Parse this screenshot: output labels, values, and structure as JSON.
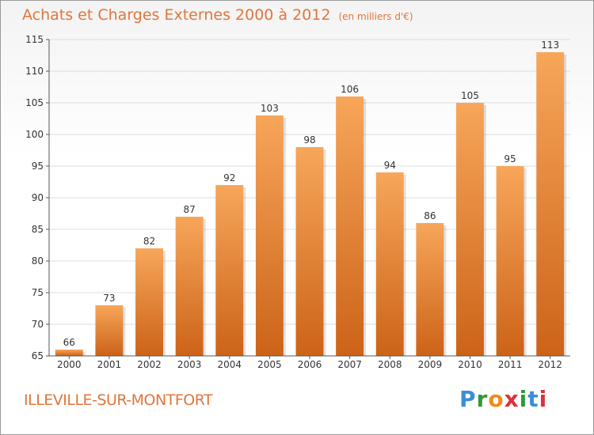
{
  "title": "Achats et Charges Externes 2000 à 2012",
  "subtitle": "(en milliers d'€)",
  "commune": "ILLEVILLE-SUR-MONTFORT",
  "logo": {
    "letters": [
      "P",
      "r",
      "o",
      "x",
      "i",
      "t",
      "i"
    ],
    "colors": [
      "#3a8fd6",
      "#2f9a3a",
      "#f08a1c",
      "#e0303c",
      "#2f9a3a",
      "#3a8fd6",
      "#e0303c"
    ]
  },
  "colors": {
    "bar_top": "#f7a65a",
    "bar_bottom": "#cc6318",
    "axis": "#555555",
    "grid": "#dddddd",
    "text": "#333333"
  },
  "chart_data": {
    "type": "bar",
    "categories": [
      "2000",
      "2001",
      "2002",
      "2003",
      "2004",
      "2005",
      "2006",
      "2007",
      "2008",
      "2009",
      "2010",
      "2011",
      "2012"
    ],
    "values": [
      66,
      73,
      82,
      87,
      92,
      103,
      98,
      106,
      94,
      86,
      105,
      95,
      113
    ],
    "value_labels": [
      "66",
      "73",
      "82",
      "87",
      "92",
      "103",
      "98",
      "106",
      "94",
      "86",
      "105",
      "95",
      "113"
    ],
    "yticks": [
      "65",
      "70",
      "75",
      "80",
      "85",
      "90",
      "95",
      "100",
      "105",
      "110",
      "115"
    ],
    "ylim": [
      65,
      115
    ],
    "grid": true
  }
}
